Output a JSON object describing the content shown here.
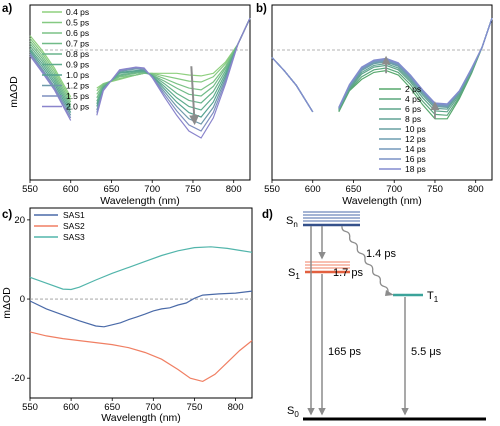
{
  "panels": {
    "a": "a)",
    "b": "b)",
    "c": "c)",
    "d": "d)"
  },
  "chart_data": [
    {
      "panel": "a",
      "type": "line",
      "xlabel": "Wavelength (nm)",
      "ylabel": "mΔOD",
      "xlim": [
        550,
        820
      ],
      "xticks": [
        550,
        600,
        650,
        700,
        750,
        800
      ],
      "ylim": [
        -1.0,
        1.0
      ],
      "zero_line": "dashed",
      "legend_position": "top-left",
      "gap": [
        600,
        632
      ],
      "annotation": "grey arrow at ~750 nm pointing down",
      "series": [
        {
          "name": "0.4 ps",
          "color": "#8fd07f",
          "x": [
            550,
            565,
            580,
            592,
            600,
            632,
            640,
            660,
            680,
            690,
            700,
            715,
            730,
            745,
            760,
            775,
            790,
            805,
            820
          ],
          "y": [
            0.65,
            0.48,
            0.28,
            0.08,
            -0.05,
            0.05,
            0.1,
            0.15,
            0.2,
            0.22,
            0.22,
            0.22,
            0.22,
            0.2,
            0.19,
            0.22,
            0.35,
            0.55,
            0.85
          ]
        },
        {
          "name": "0.5 ps",
          "color": "#85c982",
          "x": [
            550,
            565,
            580,
            592,
            600,
            632,
            640,
            660,
            680,
            690,
            700,
            715,
            730,
            745,
            760,
            775,
            790,
            805,
            820
          ],
          "y": [
            0.62,
            0.45,
            0.25,
            0.05,
            -0.08,
            0.02,
            0.1,
            0.16,
            0.2,
            0.22,
            0.22,
            0.19,
            0.16,
            0.13,
            0.12,
            0.18,
            0.33,
            0.55,
            0.85
          ]
        },
        {
          "name": "0.6 ps",
          "color": "#7bc285",
          "x": [
            550,
            565,
            580,
            592,
            600,
            632,
            640,
            660,
            680,
            690,
            700,
            715,
            730,
            745,
            760,
            775,
            790,
            805,
            820
          ],
          "y": [
            0.59,
            0.42,
            0.22,
            0.02,
            -0.11,
            -0.02,
            0.09,
            0.18,
            0.2,
            0.22,
            0.21,
            0.16,
            0.1,
            0.05,
            0.03,
            0.12,
            0.3,
            0.55,
            0.85
          ]
        },
        {
          "name": "0.7 ps",
          "color": "#71bb88",
          "x": [
            550,
            565,
            580,
            592,
            600,
            632,
            640,
            660,
            680,
            690,
            700,
            715,
            730,
            745,
            760,
            775,
            790,
            805,
            820
          ],
          "y": [
            0.56,
            0.39,
            0.19,
            -0.01,
            -0.14,
            -0.06,
            0.08,
            0.19,
            0.22,
            0.23,
            0.2,
            0.13,
            0.05,
            -0.02,
            -0.04,
            0.07,
            0.28,
            0.55,
            0.85
          ]
        },
        {
          "name": "0.8 ps",
          "color": "#68b38b",
          "x": [
            550,
            565,
            580,
            592,
            600,
            632,
            640,
            660,
            680,
            690,
            700,
            715,
            730,
            745,
            760,
            775,
            790,
            805,
            820
          ],
          "y": [
            0.53,
            0.36,
            0.16,
            -0.04,
            -0.17,
            -0.1,
            0.07,
            0.2,
            0.23,
            0.24,
            0.2,
            0.1,
            -0.01,
            -0.09,
            -0.12,
            0.01,
            0.25,
            0.55,
            0.85
          ]
        },
        {
          "name": "0.9 ps",
          "color": "#5fab8e",
          "x": [
            550,
            565,
            580,
            592,
            600,
            632,
            640,
            660,
            680,
            690,
            700,
            715,
            730,
            745,
            760,
            775,
            790,
            805,
            820
          ],
          "y": [
            0.5,
            0.33,
            0.13,
            -0.07,
            -0.2,
            -0.13,
            0.06,
            0.22,
            0.24,
            0.24,
            0.19,
            0.07,
            -0.06,
            -0.16,
            -0.2,
            -0.05,
            0.22,
            0.55,
            0.85
          ]
        },
        {
          "name": "1.0 ps",
          "color": "#57a391",
          "x": [
            550,
            565,
            580,
            592,
            600,
            632,
            640,
            660,
            680,
            690,
            700,
            715,
            730,
            745,
            760,
            775,
            790,
            805,
            820
          ],
          "y": [
            0.48,
            0.3,
            0.1,
            -0.1,
            -0.23,
            -0.16,
            0.05,
            0.23,
            0.25,
            0.25,
            0.19,
            0.04,
            -0.11,
            -0.23,
            -0.28,
            -0.11,
            0.19,
            0.55,
            0.85
          ]
        },
        {
          "name": "1.2 ps",
          "color": "#6f99aa",
          "x": [
            550,
            565,
            580,
            592,
            600,
            632,
            640,
            660,
            680,
            690,
            700,
            715,
            730,
            745,
            760,
            775,
            790,
            805,
            820
          ],
          "y": [
            0.46,
            0.27,
            0.07,
            -0.13,
            -0.26,
            -0.2,
            0.04,
            0.24,
            0.27,
            0.26,
            0.18,
            0.01,
            -0.16,
            -0.3,
            -0.36,
            -0.17,
            0.16,
            0.55,
            0.85
          ]
        },
        {
          "name": "1.5 ps",
          "color": "#7f8fbf",
          "x": [
            550,
            565,
            580,
            592,
            600,
            632,
            640,
            660,
            680,
            690,
            700,
            715,
            730,
            745,
            760,
            775,
            790,
            805,
            820
          ],
          "y": [
            0.44,
            0.25,
            0.05,
            -0.16,
            -0.29,
            -0.23,
            0.03,
            0.25,
            0.28,
            0.27,
            0.18,
            -0.02,
            -0.21,
            -0.37,
            -0.44,
            -0.23,
            0.13,
            0.55,
            0.85
          ]
        },
        {
          "name": "2.0 ps",
          "color": "#8a84cc",
          "x": [
            550,
            565,
            580,
            592,
            600,
            632,
            640,
            660,
            680,
            690,
            700,
            715,
            730,
            745,
            760,
            775,
            790,
            805,
            820
          ],
          "y": [
            0.42,
            0.23,
            0.03,
            -0.18,
            -0.32,
            -0.26,
            0.02,
            0.26,
            0.29,
            0.28,
            0.17,
            -0.05,
            -0.26,
            -0.44,
            -0.52,
            -0.29,
            0.1,
            0.55,
            0.85
          ]
        }
      ]
    },
    {
      "panel": "b",
      "type": "line",
      "xlabel": "Wavelength (nm)",
      "ylabel": "",
      "xlim": [
        550,
        820
      ],
      "xticks": [
        550,
        600,
        650,
        700,
        750,
        800
      ],
      "ylim": [
        -1.0,
        1.0
      ],
      "zero_line": "dashed",
      "legend_position": "bottom-center",
      "gap": [
        600,
        632
      ],
      "annotation": "grey arrows at ~690 nm and ~750 nm",
      "series": [
        {
          "name": "2 ps",
          "color": "#57a86d",
          "x": [
            550,
            565,
            580,
            592,
            600,
            632,
            645,
            660,
            675,
            690,
            705,
            720,
            735,
            750,
            765,
            780,
            795,
            808,
            820
          ],
          "y": [
            0.4,
            0.25,
            0.08,
            -0.1,
            -0.22,
            -0.22,
            0.02,
            0.15,
            0.23,
            0.25,
            0.2,
            0.05,
            -0.14,
            -0.3,
            -0.3,
            -0.07,
            0.22,
            0.52,
            0.85
          ]
        },
        {
          "name": "4 ps",
          "color": "#5aa77d",
          "x": [
            550,
            565,
            580,
            592,
            600,
            632,
            645,
            660,
            675,
            690,
            705,
            720,
            735,
            750,
            765,
            780,
            795,
            808,
            820
          ],
          "y": [
            0.4,
            0.25,
            0.08,
            -0.1,
            -0.22,
            -0.21,
            0.03,
            0.18,
            0.26,
            0.28,
            0.23,
            0.09,
            -0.1,
            -0.25,
            -0.26,
            -0.05,
            0.23,
            0.52,
            0.85
          ]
        },
        {
          "name": "6 ps",
          "color": "#5ea58b",
          "x": [
            550,
            565,
            580,
            592,
            600,
            632,
            645,
            660,
            675,
            690,
            705,
            720,
            735,
            750,
            765,
            780,
            795,
            808,
            820
          ],
          "y": [
            0.4,
            0.25,
            0.08,
            -0.1,
            -0.22,
            -0.2,
            0.04,
            0.21,
            0.29,
            0.31,
            0.26,
            0.12,
            -0.06,
            -0.21,
            -0.22,
            -0.03,
            0.24,
            0.52,
            0.85
          ]
        },
        {
          "name": "8 ps",
          "color": "#62a396",
          "x": [
            550,
            565,
            580,
            592,
            600,
            632,
            645,
            660,
            675,
            690,
            705,
            720,
            735,
            750,
            765,
            780,
            795,
            808,
            820
          ],
          "y": [
            0.4,
            0.25,
            0.08,
            -0.1,
            -0.22,
            -0.19,
            0.05,
            0.23,
            0.31,
            0.33,
            0.28,
            0.14,
            -0.03,
            -0.18,
            -0.19,
            -0.01,
            0.25,
            0.52,
            0.85
          ]
        },
        {
          "name": "10 ps",
          "color": "#68a1a2",
          "x": [
            550,
            565,
            580,
            592,
            600,
            632,
            645,
            660,
            675,
            690,
            705,
            720,
            735,
            750,
            765,
            780,
            795,
            808,
            820
          ],
          "y": [
            0.4,
            0.25,
            0.08,
            -0.1,
            -0.22,
            -0.19,
            0.06,
            0.25,
            0.33,
            0.35,
            0.3,
            0.16,
            -0.01,
            -0.16,
            -0.17,
            0.0,
            0.26,
            0.52,
            0.85
          ]
        },
        {
          "name": "12 ps",
          "color": "#6e9db0",
          "x": [
            550,
            565,
            580,
            592,
            600,
            632,
            645,
            660,
            675,
            690,
            705,
            720,
            735,
            750,
            765,
            780,
            795,
            808,
            820
          ],
          "y": [
            0.4,
            0.25,
            0.08,
            -0.1,
            -0.22,
            -0.18,
            0.07,
            0.26,
            0.34,
            0.36,
            0.31,
            0.17,
            0.0,
            -0.15,
            -0.16,
            0.01,
            0.26,
            0.52,
            0.85
          ]
        },
        {
          "name": "14 ps",
          "color": "#7598bc",
          "x": [
            550,
            565,
            580,
            592,
            600,
            632,
            645,
            660,
            675,
            690,
            705,
            720,
            735,
            750,
            765,
            780,
            795,
            808,
            820
          ],
          "y": [
            0.4,
            0.25,
            0.08,
            -0.1,
            -0.22,
            -0.18,
            0.08,
            0.27,
            0.35,
            0.37,
            0.32,
            0.18,
            0.01,
            -0.14,
            -0.15,
            0.01,
            0.27,
            0.52,
            0.85
          ]
        },
        {
          "name": "16 ps",
          "color": "#7c92c6",
          "x": [
            550,
            565,
            580,
            592,
            600,
            632,
            645,
            660,
            675,
            690,
            705,
            720,
            735,
            750,
            765,
            780,
            795,
            808,
            820
          ],
          "y": [
            0.4,
            0.25,
            0.08,
            -0.1,
            -0.22,
            -0.17,
            0.08,
            0.28,
            0.36,
            0.38,
            0.33,
            0.19,
            0.02,
            -0.13,
            -0.14,
            0.02,
            0.27,
            0.52,
            0.85
          ]
        },
        {
          "name": "18 ps",
          "color": "#838ccf",
          "x": [
            550,
            565,
            580,
            592,
            600,
            632,
            645,
            660,
            675,
            690,
            705,
            720,
            735,
            750,
            765,
            780,
            795,
            808,
            820
          ],
          "y": [
            0.4,
            0.25,
            0.08,
            -0.1,
            -0.22,
            -0.17,
            0.09,
            0.29,
            0.37,
            0.39,
            0.34,
            0.2,
            0.03,
            -0.12,
            -0.13,
            0.02,
            0.28,
            0.52,
            0.85
          ]
        }
      ]
    },
    {
      "panel": "c",
      "type": "line",
      "xlabel": "Wavelength (nm)",
      "ylabel": "mΔOD",
      "xlim": [
        550,
        820
      ],
      "xticks": [
        550,
        600,
        650,
        700,
        750,
        800
      ],
      "ylim": [
        -25,
        23
      ],
      "yticks": [
        -20,
        0,
        20
      ],
      "zero_line": "dashed",
      "legend_position": "top-left",
      "series": [
        {
          "name": "SAS1",
          "color": "#4a6aa8",
          "x": [
            550,
            570,
            590,
            610,
            630,
            640,
            650,
            660,
            670,
            680,
            690,
            700,
            710,
            720,
            730,
            740,
            750,
            760,
            780,
            800,
            820
          ],
          "y": [
            -0.5,
            -2.5,
            -4,
            -5.5,
            -6.8,
            -7,
            -6.5,
            -6,
            -5.2,
            -4.5,
            -3.8,
            -3,
            -2.5,
            -2.2,
            -1.5,
            -1,
            0.2,
            1,
            1.3,
            1.5,
            2
          ]
        },
        {
          "name": "SAS2",
          "color": "#f07f63",
          "x": [
            550,
            570,
            590,
            610,
            630,
            650,
            670,
            690,
            710,
            730,
            745,
            760,
            775,
            790,
            805,
            820
          ],
          "y": [
            -8.3,
            -9.3,
            -10,
            -10.5,
            -11,
            -11.5,
            -12.3,
            -13.5,
            -15.2,
            -17.8,
            -20,
            -20.8,
            -19,
            -16,
            -13,
            -10.5
          ]
        },
        {
          "name": "SAS3",
          "color": "#52b5ab",
          "x": [
            550,
            570,
            590,
            600,
            610,
            630,
            650,
            670,
            690,
            710,
            730,
            750,
            770,
            790,
            805,
            820
          ],
          "y": [
            5.5,
            4,
            2.5,
            2.4,
            3,
            4.8,
            6.5,
            8,
            9.5,
            11,
            12.2,
            13,
            13.2,
            12.8,
            12.3,
            11.8
          ]
        }
      ]
    },
    {
      "panel": "d",
      "type": "diagram",
      "states": [
        "Sn",
        "S1",
        "T1",
        "S0"
      ],
      "transitions": [
        {
          "from": "Sn",
          "to": "T1",
          "label": "1.4 ps"
        },
        {
          "from": "Sn",
          "to": "S1",
          "label": "1.7 ps"
        },
        {
          "from": "S1",
          "to": "S0",
          "label": "165 ps"
        },
        {
          "from": "T1",
          "to": "S0",
          "label": "5.5 μs"
        }
      ]
    }
  ],
  "level_colors": {
    "Sn": "#4a6aa8",
    "S1": "#f07f63",
    "T1": "#3ba39a",
    "S0": "#000000"
  }
}
